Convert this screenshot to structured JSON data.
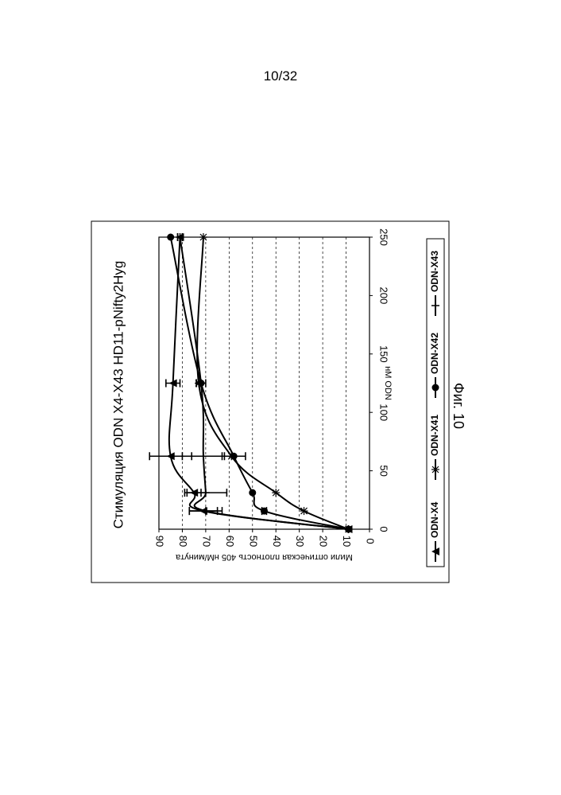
{
  "page": {
    "number": "10/32",
    "caption": "Фиг. 10"
  },
  "chart_data": {
    "type": "line",
    "title": "Стимуляция ODN X4-X43 HD11-pNifty2Hyg",
    "xlabel": "нМ ODN",
    "ylabel": "Мили оптическая плотность 405 нМ/минута",
    "xlim": [
      0,
      250
    ],
    "ylim": [
      0,
      90
    ],
    "x_ticks": [
      0,
      50,
      100,
      150,
      200,
      250
    ],
    "y_ticks": [
      0,
      10,
      20,
      30,
      40,
      50,
      60,
      70,
      80,
      90
    ],
    "grid": "horizontal dashed",
    "legend_position": "bottom",
    "series": [
      {
        "name": "ODN-X4",
        "marker": "triangle",
        "points": [
          [
            0,
            9
          ],
          [
            15.6,
            71
          ],
          [
            31.25,
            75
          ],
          [
            62.5,
            85
          ],
          [
            125,
            84
          ],
          [
            250,
            81
          ]
        ],
        "error": [
          0,
          6,
          3,
          9,
          3,
          1
        ]
      },
      {
        "name": "ODN-X41",
        "marker": "star",
        "points": [
          [
            0,
            9
          ],
          [
            15.6,
            28
          ],
          [
            31.25,
            40
          ],
          [
            62.5,
            59
          ],
          [
            125,
            73
          ],
          [
            250,
            71
          ]
        ],
        "error": [
          0,
          0,
          0,
          0,
          1,
          0
        ]
      },
      {
        "name": "ODN-X42",
        "marker": "circle",
        "points": [
          [
            0,
            9
          ],
          [
            15.6,
            45
          ],
          [
            31.25,
            50
          ],
          [
            62.5,
            58
          ],
          [
            125,
            72
          ],
          [
            250,
            85
          ]
        ],
        "error": [
          0,
          1,
          0,
          5,
          0,
          0
        ]
      },
      {
        "name": "ODN-X43",
        "marker": "plus",
        "points": [
          [
            0,
            9
          ],
          [
            15.6,
            70
          ],
          [
            31.25,
            70
          ],
          [
            62.5,
            71
          ],
          [
            125,
            72
          ],
          [
            250,
            81
          ]
        ],
        "error": [
          0,
          7,
          9,
          9,
          2,
          1
        ]
      }
    ]
  }
}
